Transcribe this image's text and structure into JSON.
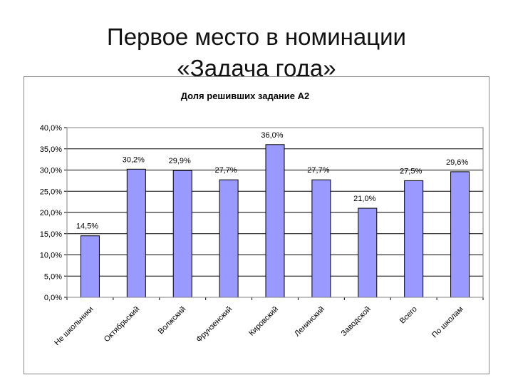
{
  "slide": {
    "title_line1": "Первое место в номинации",
    "title_line2": "«Задача года»"
  },
  "chart_data": {
    "type": "bar",
    "title": "Доля решивших задание А2",
    "categories": [
      "Не школьники",
      "Октябрьский",
      "Волжский",
      "Фрунзенский",
      "Кировский",
      "Ленинский",
      "Заводской",
      "Всего",
      "По школам"
    ],
    "values": [
      14.5,
      30.2,
      29.9,
      27.7,
      36.0,
      27.7,
      21.0,
      27.5,
      29.6
    ],
    "data_labels": [
      "14,5%",
      "30,2%",
      "29,9%",
      "27,7%",
      "36,0%",
      "27,7%",
      "21,0%",
      "27,5%",
      "29,6%"
    ],
    "ylim": [
      0,
      40
    ],
    "y_ticks": [
      0,
      5,
      10,
      15,
      20,
      25,
      30,
      35,
      40
    ],
    "y_tick_labels": [
      "0,0%",
      "5,0%",
      "10,0%",
      "15,0%",
      "20,0%",
      "25,0%",
      "30,0%",
      "35,0%",
      "40,0%"
    ],
    "xlabel": "",
    "ylabel": "",
    "grid": true,
    "legend": "none",
    "bar_color": "#9999ff",
    "bar_stroke": "#000000",
    "grid_color": "#000000",
    "plot_border_color": "#808080"
  }
}
